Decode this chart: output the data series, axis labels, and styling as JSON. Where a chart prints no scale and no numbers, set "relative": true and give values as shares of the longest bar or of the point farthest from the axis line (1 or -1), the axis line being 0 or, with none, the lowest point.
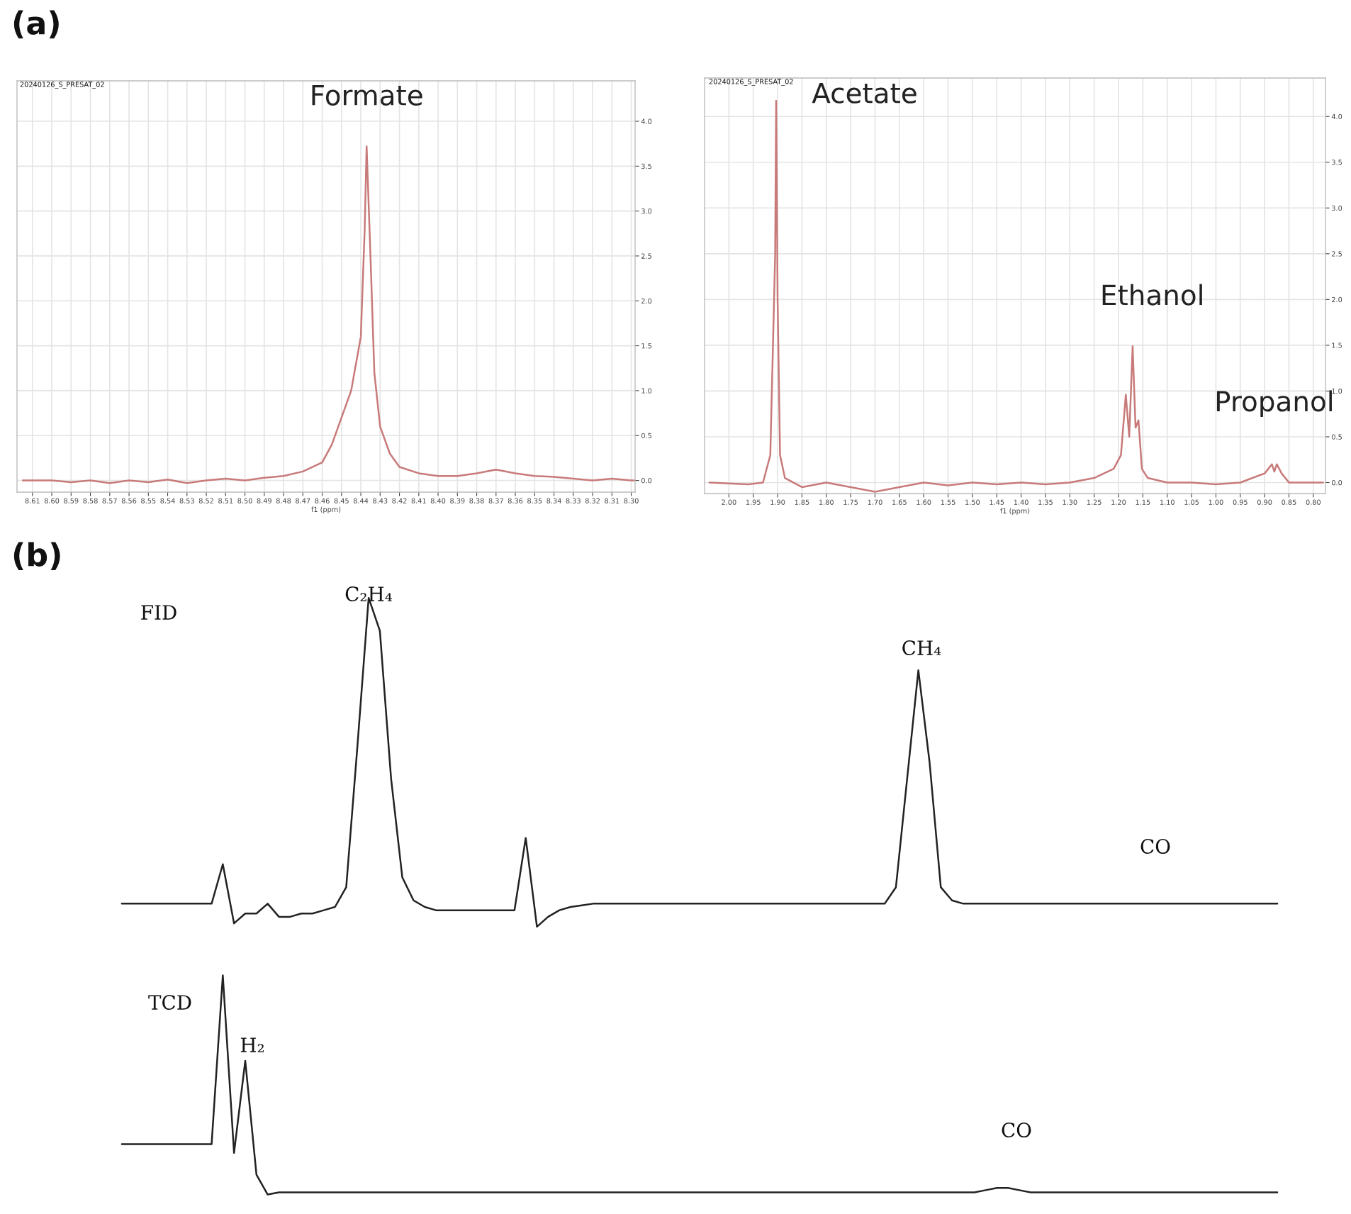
{
  "chart_data": [
    {
      "type": "line",
      "color": "#c87a7a",
      "xlabel": "f1 (ppm)",
      "grid": true,
      "x": [
        8.615,
        8.6,
        8.59,
        8.58,
        8.57,
        8.56,
        8.55,
        8.54,
        8.53,
        8.52,
        8.51,
        8.5,
        8.49,
        8.48,
        8.47,
        8.46,
        8.455,
        8.45,
        8.445,
        8.44,
        8.438,
        8.437,
        8.435,
        8.433,
        8.43,
        8.425,
        8.42,
        8.41,
        8.4,
        8.39,
        8.38,
        8.37,
        8.36,
        8.35,
        8.34,
        8.33,
        8.32,
        8.31,
        8.3,
        8.298
      ],
      "values": [
        0.0,
        0.0,
        -0.02,
        0.0,
        -0.03,
        0.0,
        -0.02,
        0.01,
        -0.03,
        0.0,
        0.02,
        0.0,
        0.03,
        0.05,
        0.1,
        0.2,
        0.4,
        0.7,
        1.0,
        1.6,
        2.8,
        3.72,
        2.5,
        1.2,
        0.6,
        0.3,
        0.15,
        0.08,
        0.05,
        0.05,
        0.08,
        0.12,
        0.08,
        0.05,
        0.04,
        0.02,
        0.0,
        0.02,
        0.0,
        0.0
      ],
      "xlim": [
        8.618,
        8.298
      ],
      "xticks": [
        {
          "value": 8.61,
          "label": "8.61"
        },
        {
          "value": 8.6,
          "label": "8.60"
        },
        {
          "value": 8.59,
          "label": "8.59"
        },
        {
          "value": 8.58,
          "label": "8.58"
        },
        {
          "value": 8.57,
          "label": "8.57"
        },
        {
          "value": 8.56,
          "label": "8.56"
        },
        {
          "value": 8.55,
          "label": "8.55"
        },
        {
          "value": 8.54,
          "label": "8.54"
        },
        {
          "value": 8.53,
          "label": "8.53"
        },
        {
          "value": 8.52,
          "label": "8.52"
        },
        {
          "value": 8.51,
          "label": "8.51"
        },
        {
          "value": 8.5,
          "label": "8.50"
        },
        {
          "value": 8.49,
          "label": "8.49"
        },
        {
          "value": 8.48,
          "label": "8.48"
        },
        {
          "value": 8.47,
          "label": "8.47"
        },
        {
          "value": 8.46,
          "label": "8.46"
        },
        {
          "value": 8.45,
          "label": "8.45"
        },
        {
          "value": 8.44,
          "label": "8.44"
        },
        {
          "value": 8.43,
          "label": "8.43"
        },
        {
          "value": 8.42,
          "label": "8.42"
        },
        {
          "value": 8.41,
          "label": "8.41"
        },
        {
          "value": 8.4,
          "label": "8.40"
        },
        {
          "value": 8.39,
          "label": "8.39"
        },
        {
          "value": 8.38,
          "label": "8.38"
        },
        {
          "value": 8.37,
          "label": "8.37"
        },
        {
          "value": 8.36,
          "label": "8.36"
        },
        {
          "value": 8.35,
          "label": "8.35"
        },
        {
          "value": 8.34,
          "label": "8.34"
        },
        {
          "value": 8.33,
          "label": "8.33"
        },
        {
          "value": 8.32,
          "label": "8.32"
        },
        {
          "value": 8.31,
          "label": "8.31"
        },
        {
          "value": 8.3,
          "label": "8.30"
        }
      ],
      "ylim": [
        -0.13,
        4.45
      ],
      "yticks": [
        {
          "value": 0,
          "label": "0.0"
        },
        {
          "value": 0.5,
          "label": "0.5"
        },
        {
          "value": 1,
          "label": "1.0"
        },
        {
          "value": 1.5,
          "label": "1.5"
        },
        {
          "value": 2,
          "label": "2.0"
        },
        {
          "value": 2.5,
          "label": "2.5"
        },
        {
          "value": 3,
          "label": "3.0"
        },
        {
          "value": 3.5,
          "label": "3.5"
        },
        {
          "value": 4,
          "label": "4.0"
        }
      ],
      "annotations": [
        "(a)",
        "20240126_S_PRESAT_02",
        {
          "text": "Formate",
          "x": 8.437,
          "y": 3.72
        }
      ]
    },
    {
      "type": "line",
      "color": "#c87a7a",
      "xlabel": "f1 (ppm)",
      "grid": true,
      "x": [
        2.04,
        1.96,
        1.93,
        1.915,
        1.905,
        1.903,
        1.9,
        1.895,
        1.885,
        1.85,
        1.8,
        1.75,
        1.7,
        1.65,
        1.6,
        1.55,
        1.5,
        1.45,
        1.4,
        1.35,
        1.3,
        1.25,
        1.21,
        1.195,
        1.185,
        1.178,
        1.171,
        1.165,
        1.159,
        1.152,
        1.14,
        1.1,
        1.05,
        1.0,
        0.95,
        0.9,
        0.885,
        0.88,
        0.875,
        0.865,
        0.85,
        0.8,
        0.78
      ],
      "values": [
        0.0,
        -0.02,
        0.0,
        0.3,
        2.5,
        4.17,
        2.0,
        0.3,
        0.05,
        -0.05,
        0.0,
        -0.05,
        -0.1,
        -0.05,
        0.0,
        -0.03,
        0.0,
        -0.02,
        0.0,
        -0.02,
        0.0,
        0.05,
        0.15,
        0.3,
        0.96,
        0.5,
        1.49,
        0.6,
        0.68,
        0.15,
        0.05,
        0.0,
        0.0,
        -0.02,
        0.0,
        0.1,
        0.2,
        0.12,
        0.2,
        0.1,
        0.0,
        0.0,
        0.0
      ],
      "xlim": [
        2.05,
        0.775
      ],
      "xticks": [
        {
          "value": 2.0,
          "label": "2.00"
        },
        {
          "value": 1.95,
          "label": "1.95"
        },
        {
          "value": 1.9,
          "label": "1.90"
        },
        {
          "value": 1.85,
          "label": "1.85"
        },
        {
          "value": 1.8,
          "label": "1.80"
        },
        {
          "value": 1.75,
          "label": "1.75"
        },
        {
          "value": 1.7,
          "label": "1.70"
        },
        {
          "value": 1.65,
          "label": "1.65"
        },
        {
          "value": 1.6,
          "label": "1.60"
        },
        {
          "value": 1.55,
          "label": "1.55"
        },
        {
          "value": 1.5,
          "label": "1.50"
        },
        {
          "value": 1.45,
          "label": "1.45"
        },
        {
          "value": 1.4,
          "label": "1.40"
        },
        {
          "value": 1.35,
          "label": "1.35"
        },
        {
          "value": 1.3,
          "label": "1.30"
        },
        {
          "value": 1.25,
          "label": "1.25"
        },
        {
          "value": 1.2,
          "label": "1.20"
        },
        {
          "value": 1.15,
          "label": "1.15"
        },
        {
          "value": 1.1,
          "label": "1.10"
        },
        {
          "value": 1.05,
          "label": "1.05"
        },
        {
          "value": 1.0,
          "label": "1.00"
        },
        {
          "value": 0.95,
          "label": "0.95"
        },
        {
          "value": 0.9,
          "label": "0.90"
        },
        {
          "value": 0.85,
          "label": "0.85"
        },
        {
          "value": 0.8,
          "label": "0.80"
        }
      ],
      "ylim": [
        -0.12,
        4.42
      ],
      "yticks": [
        {
          "value": 0,
          "label": "0.0"
        },
        {
          "value": 0.5,
          "label": "0.5"
        },
        {
          "value": 1,
          "label": "1.0"
        },
        {
          "value": 1.5,
          "label": "1.5"
        },
        {
          "value": 2,
          "label": "2.0"
        },
        {
          "value": 2.5,
          "label": "2.5"
        },
        {
          "value": 3,
          "label": "3.0"
        },
        {
          "value": 3.5,
          "label": "3.5"
        },
        {
          "value": 4,
          "label": "4.0"
        }
      ],
      "annotations": [
        "20240126_S_PRESAT_02",
        {
          "text": "Acetate",
          "x": 1.903,
          "y": 4.17
        },
        {
          "text": "Ethanol",
          "x": 1.171,
          "y": 1.49
        },
        {
          "text": "Propanol",
          "x": 0.88,
          "y": 0.2
        }
      ]
    },
    {
      "type": "line",
      "relative": true,
      "color": "#222222",
      "categories": [
        null,
        null,
        null,
        null,
        null,
        null,
        null,
        null,
        null,
        null,
        null,
        null,
        null,
        null,
        null,
        null,
        null,
        null,
        null,
        null,
        null,
        null,
        null,
        null,
        null,
        null,
        null,
        null,
        null,
        null,
        null,
        null,
        null,
        null,
        null,
        null,
        null,
        null,
        null,
        null,
        null,
        null,
        null,
        null,
        null,
        null,
        null,
        null,
        null,
        null,
        null,
        null,
        null,
        null,
        null,
        null,
        null,
        null,
        null,
        null,
        null,
        null,
        null,
        null,
        null,
        null,
        null,
        null,
        null,
        null,
        null,
        null,
        null,
        null,
        null,
        null,
        null,
        null,
        null,
        null,
        null,
        null,
        null,
        null,
        null,
        null,
        null,
        null,
        null,
        null,
        null,
        null,
        null,
        null,
        null,
        null,
        null,
        null,
        null,
        null,
        null,
        null,
        null,
        null
      ],
      "values": [
        0.07,
        0.07,
        0.07,
        0.07,
        0.07,
        0.07,
        0.07,
        0.07,
        0.07,
        0.19,
        0.01,
        0.04,
        0.04,
        0.07,
        0.03,
        0.03,
        0.04,
        0.04,
        0.05,
        0.06,
        0.12,
        0.55,
        1.0,
        0.9,
        0.45,
        0.15,
        0.08,
        0.06,
        0.05,
        0.05,
        0.05,
        0.05,
        0.05,
        0.05,
        0.05,
        0.05,
        0.27,
        0.0,
        0.03,
        0.05,
        0.06,
        0.065,
        0.07,
        0.07,
        0.07,
        0.07,
        0.07,
        0.07,
        0.07,
        0.07,
        0.07,
        0.07,
        0.07,
        0.07,
        0.07,
        0.07,
        0.07,
        0.07,
        0.07,
        0.07,
        0.07,
        0.07,
        0.07,
        0.07,
        0.07,
        0.07,
        0.07,
        0.07,
        0.07,
        0.12,
        0.45,
        0.78,
        0.5,
        0.12,
        0.08,
        0.07,
        0.07,
        0.07,
        0.07,
        0.07,
        0.07,
        0.07,
        0.07,
        0.07,
        0.07,
        0.07,
        0.07,
        0.07,
        0.07,
        0.07,
        0.07,
        0.07,
        0.07,
        0.07,
        0.07,
        0.07,
        0.07,
        0.07,
        0.07,
        0.07,
        0.07,
        0.07,
        0.07,
        0.07
      ],
      "annotations": [
        "(b)",
        "FID",
        "C₂H₄",
        "CH₄",
        "CO"
      ]
    },
    {
      "type": "line",
      "relative": true,
      "color": "#222222",
      "categories": [
        null,
        null,
        null,
        null,
        null,
        null,
        null,
        null,
        null,
        null,
        null,
        null,
        null,
        null,
        null,
        null,
        null,
        null,
        null,
        null,
        null,
        null,
        null,
        null,
        null,
        null,
        null,
        null,
        null,
        null,
        null,
        null,
        null,
        null,
        null,
        null,
        null,
        null,
        null,
        null,
        null,
        null,
        null,
        null,
        null,
        null,
        null,
        null,
        null,
        null,
        null,
        null,
        null,
        null,
        null,
        null,
        null,
        null,
        null,
        null,
        null,
        null,
        null,
        null,
        null,
        null,
        null,
        null,
        null,
        null,
        null,
        null,
        null,
        null,
        null,
        null,
        null,
        null,
        null,
        null,
        null,
        null,
        null,
        null,
        null,
        null,
        null,
        null,
        null,
        null,
        null,
        null,
        null,
        null,
        null,
        null,
        null,
        null,
        null,
        null,
        null,
        null,
        null,
        null
      ],
      "values": [
        0.23,
        0.23,
        0.23,
        0.23,
        0.23,
        0.23,
        0.23,
        0.23,
        0.23,
        1.0,
        0.19,
        0.61,
        0.09,
        0.0,
        0.01,
        0.01,
        0.01,
        0.01,
        0.01,
        0.01,
        0.01,
        0.01,
        0.01,
        0.01,
        0.01,
        0.01,
        0.01,
        0.01,
        0.01,
        0.01,
        0.01,
        0.01,
        0.01,
        0.01,
        0.01,
        0.01,
        0.01,
        0.01,
        0.01,
        0.01,
        0.01,
        0.01,
        0.01,
        0.01,
        0.01,
        0.01,
        0.01,
        0.01,
        0.01,
        0.01,
        0.01,
        0.01,
        0.01,
        0.01,
        0.01,
        0.01,
        0.01,
        0.01,
        0.01,
        0.01,
        0.01,
        0.01,
        0.01,
        0.01,
        0.01,
        0.01,
        0.01,
        0.01,
        0.01,
        0.01,
        0.01,
        0.01,
        0.01,
        0.01,
        0.01,
        0.01,
        0.01,
        0.02,
        0.03,
        0.03,
        0.02,
        0.01,
        0.01,
        0.01,
        0.01,
        0.01,
        0.01,
        0.01,
        0.01,
        0.01,
        0.01,
        0.01,
        0.01,
        0.01,
        0.01,
        0.01,
        0.01,
        0.01,
        0.01,
        0.01,
        0.01,
        0.01,
        0.01,
        0.01
      ],
      "annotations": [
        "TCD",
        "H₂",
        "CO"
      ]
    }
  ]
}
